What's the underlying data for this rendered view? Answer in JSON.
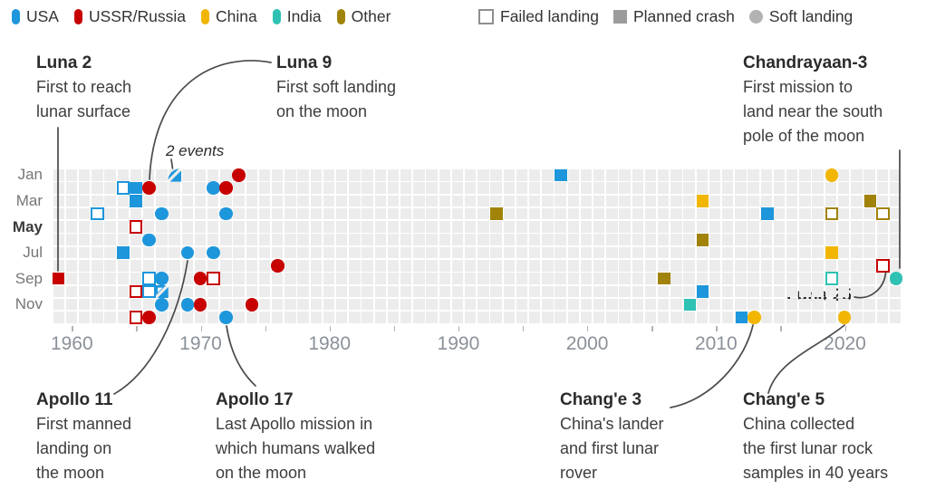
{
  "legend": {
    "countries": [
      {
        "key": "usa",
        "label": "USA",
        "color": "#1e96dc"
      },
      {
        "key": "ussr",
        "label": "USSR/Russia",
        "color": "#c70000"
      },
      {
        "key": "china",
        "label": "China",
        "color": "#f2b602"
      },
      {
        "key": "india",
        "label": "India",
        "color": "#2fc2b4"
      },
      {
        "key": "other",
        "label": "Other",
        "color": "#a18309"
      }
    ],
    "outcomes": [
      {
        "key": "failed",
        "label": "Failed landing",
        "shape": "open-square",
        "color": "#8f8f8f"
      },
      {
        "key": "crash",
        "label": "Planned crash",
        "shape": "filled-square",
        "color": "#9c9c9c"
      },
      {
        "key": "soft",
        "label": "Soft landing",
        "shape": "circle",
        "color": "#b2b2b2"
      }
    ]
  },
  "annotations": {
    "luna2": {
      "title": "Luna 2",
      "lines": [
        "First to reach",
        "lunar surface"
      ]
    },
    "luna9": {
      "title": "Luna 9",
      "lines": [
        "First soft landing",
        "on the moon"
      ]
    },
    "chandrayaan3": {
      "title": "Chandrayaan-3",
      "lines": [
        "First mission to",
        "land near the south",
        "pole of the moon"
      ]
    },
    "two_events": "2 events",
    "luna25": "Luna 25",
    "apollo11": {
      "title": "Apollo 11",
      "lines": [
        "First manned",
        "landing on",
        "the moon"
      ]
    },
    "apollo17": {
      "title": "Apollo 17",
      "lines": [
        "Last Apollo mission in",
        "which humans walked",
        "on the moon"
      ]
    },
    "change3": {
      "title": "Chang'e 3",
      "lines": [
        "China's lander",
        "and first lunar",
        "rover"
      ]
    },
    "change5": {
      "title": "Chang'e 5",
      "lines": [
        "China collected",
        "the first lunar rock",
        "samples in 40 years"
      ]
    }
  },
  "chart_data": {
    "type": "scatter",
    "x_axis": {
      "start_year": 1959,
      "end_year": 2024,
      "tick_step": 5,
      "tick_years": [
        1960,
        1965,
        1970,
        1975,
        1980,
        1985,
        1990,
        1995,
        2000,
        2005,
        2010,
        2015,
        2020
      ],
      "label_years": [
        1960,
        1970,
        1980,
        1990,
        2000,
        2010,
        2020
      ]
    },
    "y_axis": {
      "months": [
        "Jan",
        "Feb",
        "Mar",
        "Apr",
        "May",
        "Jun",
        "Jul",
        "Aug",
        "Sep",
        "Oct",
        "Nov",
        "Dec"
      ],
      "labeled_months": [
        "Jan",
        "Mar",
        "May",
        "Jul",
        "Sep",
        "Nov"
      ]
    },
    "outcome_types": [
      "failed",
      "crash",
      "soft",
      "failed+crash",
      "soft+crash"
    ],
    "events": [
      {
        "year": 1959,
        "month": 9,
        "country": "ussr",
        "outcome": "crash",
        "label": "Luna 2"
      },
      {
        "year": 1962,
        "month": 4,
        "country": "usa",
        "outcome": "failed"
      },
      {
        "year": 1964,
        "month": 2,
        "country": "usa",
        "outcome": "failed"
      },
      {
        "year": 1964,
        "month": 7,
        "country": "usa",
        "outcome": "crash"
      },
      {
        "year": 1965,
        "month": 2,
        "country": "usa",
        "outcome": "crash"
      },
      {
        "year": 1965,
        "month": 3,
        "country": "usa",
        "outcome": "crash"
      },
      {
        "year": 1965,
        "month": 5,
        "country": "ussr",
        "outcome": "failed"
      },
      {
        "year": 1965,
        "month": 10,
        "country": "ussr",
        "outcome": "failed"
      },
      {
        "year": 1965,
        "month": 12,
        "country": "ussr",
        "outcome": "failed"
      },
      {
        "year": 1966,
        "month": 2,
        "country": "ussr",
        "outcome": "soft",
        "label": "Luna 9"
      },
      {
        "year": 1966,
        "month": 6,
        "country": "usa",
        "outcome": "soft"
      },
      {
        "year": 1966,
        "month": 9,
        "country": "usa",
        "outcome": "failed"
      },
      {
        "year": 1966,
        "month": 10,
        "country": "usa",
        "outcome": "failed"
      },
      {
        "year": 1966,
        "month": 12,
        "country": "ussr",
        "outcome": "soft"
      },
      {
        "year": 1967,
        "month": 4,
        "country": "usa",
        "outcome": "soft"
      },
      {
        "year": 1967,
        "month": 9,
        "country": "usa",
        "outcome": "soft"
      },
      {
        "year": 1967,
        "month": 10,
        "country": "usa",
        "outcome": "failed+crash",
        "note": "2 events"
      },
      {
        "year": 1967,
        "month": 11,
        "country": "usa",
        "outcome": "soft"
      },
      {
        "year": 1968,
        "month": 1,
        "country": "usa",
        "outcome": "soft+crash",
        "note": "2 events"
      },
      {
        "year": 1969,
        "month": 7,
        "country": "usa",
        "outcome": "soft",
        "label": "Apollo 11"
      },
      {
        "year": 1969,
        "month": 11,
        "country": "usa",
        "outcome": "soft"
      },
      {
        "year": 1970,
        "month": 9,
        "country": "ussr",
        "outcome": "soft"
      },
      {
        "year": 1970,
        "month": 11,
        "country": "ussr",
        "outcome": "soft"
      },
      {
        "year": 1971,
        "month": 2,
        "country": "usa",
        "outcome": "soft"
      },
      {
        "year": 1971,
        "month": 7,
        "country": "usa",
        "outcome": "soft"
      },
      {
        "year": 1971,
        "month": 9,
        "country": "ussr",
        "outcome": "failed"
      },
      {
        "year": 1972,
        "month": 2,
        "country": "ussr",
        "outcome": "soft"
      },
      {
        "year": 1972,
        "month": 4,
        "country": "usa",
        "outcome": "soft"
      },
      {
        "year": 1972,
        "month": 12,
        "country": "usa",
        "outcome": "soft",
        "label": "Apollo 17"
      },
      {
        "year": 1973,
        "month": 1,
        "country": "ussr",
        "outcome": "soft"
      },
      {
        "year": 1974,
        "month": 11,
        "country": "ussr",
        "outcome": "soft"
      },
      {
        "year": 1976,
        "month": 8,
        "country": "ussr",
        "outcome": "soft"
      },
      {
        "year": 1993,
        "month": 4,
        "country": "other",
        "outcome": "crash"
      },
      {
        "year": 1998,
        "month": 1,
        "country": "usa",
        "outcome": "crash"
      },
      {
        "year": 2006,
        "month": 9,
        "country": "other",
        "outcome": "crash"
      },
      {
        "year": 2008,
        "month": 11,
        "country": "india",
        "outcome": "crash"
      },
      {
        "year": 2009,
        "month": 3,
        "country": "china",
        "outcome": "crash"
      },
      {
        "year": 2009,
        "month": 6,
        "country": "other",
        "outcome": "crash"
      },
      {
        "year": 2009,
        "month": 10,
        "country": "usa",
        "outcome": "crash"
      },
      {
        "year": 2012,
        "month": 12,
        "country": "usa",
        "outcome": "crash"
      },
      {
        "year": 2013,
        "month": 12,
        "country": "china",
        "outcome": "soft",
        "label": "Chang'e 3"
      },
      {
        "year": 2014,
        "month": 4,
        "country": "usa",
        "outcome": "crash"
      },
      {
        "year": 2019,
        "month": 1,
        "country": "china",
        "outcome": "soft"
      },
      {
        "year": 2019,
        "month": 4,
        "country": "other",
        "outcome": "failed"
      },
      {
        "year": 2019,
        "month": 7,
        "country": "china",
        "outcome": "crash"
      },
      {
        "year": 2019,
        "month": 9,
        "country": "india",
        "outcome": "failed"
      },
      {
        "year": 2020,
        "month": 12,
        "country": "china",
        "outcome": "soft",
        "label": "Chang'e 5"
      },
      {
        "year": 2022,
        "month": 3,
        "country": "other",
        "outcome": "crash"
      },
      {
        "year": 2023,
        "month": 4,
        "country": "other",
        "outcome": "failed"
      },
      {
        "year": 2023,
        "month": 8,
        "country": "ussr",
        "outcome": "failed",
        "label": "Luna 25"
      },
      {
        "year": 2024,
        "month": 9,
        "country": "india",
        "outcome": "soft",
        "label": "Chandrayaan-3"
      }
    ]
  }
}
